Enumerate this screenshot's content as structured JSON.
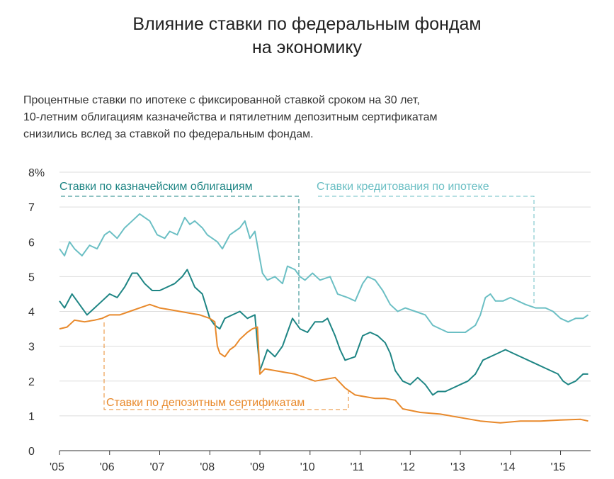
{
  "header": {
    "title_line1": "Влияние ставки по федеральным фондам",
    "title_line2": "на экономику",
    "subtitle_line1": "Процентные ставки по ипотеке с фиксированной ставкой сроком на 30 лет,",
    "subtitle_line2": "10-летним облигациям казначейства и пятилетним депозитным  сертификатам",
    "subtitle_line3": "снизились вслед за ставкой по федеральным фондам."
  },
  "chart_data": {
    "type": "line",
    "ylim": [
      0,
      8
    ],
    "xlim": [
      2005.0,
      2015.6
    ],
    "y_ticks": [
      "0",
      "1",
      "2",
      "3",
      "4",
      "5",
      "6",
      "7",
      "8%"
    ],
    "y_tick_values": [
      0,
      1,
      2,
      3,
      4,
      5,
      6,
      7,
      8
    ],
    "x_ticks": [
      "'05",
      "'06",
      "'07",
      "'08",
      "'09",
      "'10",
      "'11",
      "'12",
      "'13",
      "'14",
      "'15"
    ],
    "x_tick_values": [
      2005,
      2006,
      2007,
      2008,
      2009,
      2010,
      2011,
      2012,
      2013,
      2014,
      2015
    ],
    "grid": true,
    "colors": {
      "mortgage": "#6bbfc4",
      "treasury": "#1e8584",
      "cd": "#e8892b",
      "grid": "#dddddd",
      "axis": "#333333"
    },
    "series": [
      {
        "name": "Ставки кредитования по ипотеке",
        "key": "mortgage",
        "x": [
          2005.0,
          2005.1,
          2005.2,
          2005.3,
          2005.45,
          2005.6,
          2005.75,
          2005.9,
          2006.0,
          2006.15,
          2006.3,
          2006.45,
          2006.6,
          2006.7,
          2006.8,
          2006.95,
          2007.1,
          2007.2,
          2007.35,
          2007.5,
          2007.6,
          2007.7,
          2007.85,
          2007.95,
          2008.05,
          2008.15,
          2008.25,
          2008.4,
          2008.5,
          2008.6,
          2008.7,
          2008.8,
          2008.9,
          2009.0,
          2009.05,
          2009.15,
          2009.3,
          2009.45,
          2009.55,
          2009.7,
          2009.8,
          2009.9,
          2010.05,
          2010.2,
          2010.4,
          2010.55,
          2010.75,
          2010.9,
          2011.05,
          2011.15,
          2011.3,
          2011.45,
          2011.6,
          2011.75,
          2011.9,
          2012.1,
          2012.3,
          2012.45,
          2012.6,
          2012.75,
          2012.9,
          2013.1,
          2013.3,
          2013.4,
          2013.5,
          2013.6,
          2013.7,
          2013.85,
          2014.0,
          2014.15,
          2014.3,
          2014.5,
          2014.7,
          2014.85,
          2015.0,
          2015.15,
          2015.3,
          2015.45,
          2015.55
        ],
        "y": [
          5.8,
          5.6,
          6.0,
          5.8,
          5.6,
          5.9,
          5.8,
          6.2,
          6.3,
          6.1,
          6.4,
          6.6,
          6.8,
          6.7,
          6.6,
          6.2,
          6.1,
          6.3,
          6.2,
          6.7,
          6.5,
          6.6,
          6.4,
          6.2,
          6.1,
          6.0,
          5.8,
          6.2,
          6.3,
          6.4,
          6.6,
          6.1,
          6.3,
          5.5,
          5.1,
          4.9,
          5.0,
          4.8,
          5.3,
          5.2,
          5.0,
          4.9,
          5.1,
          4.9,
          5.0,
          4.5,
          4.4,
          4.3,
          4.8,
          5.0,
          4.9,
          4.6,
          4.2,
          4.0,
          4.1,
          4.0,
          3.9,
          3.6,
          3.5,
          3.4,
          3.4,
          3.4,
          3.6,
          3.9,
          4.4,
          4.5,
          4.3,
          4.3,
          4.4,
          4.3,
          4.2,
          4.1,
          4.1,
          4.0,
          3.8,
          3.7,
          3.8,
          3.8,
          3.9
        ]
      },
      {
        "name": "Ставки по казначейским облигациям",
        "key": "treasury",
        "x": [
          2005.0,
          2005.1,
          2005.25,
          2005.4,
          2005.55,
          2005.7,
          2005.85,
          2006.0,
          2006.15,
          2006.3,
          2006.45,
          2006.55,
          2006.7,
          2006.85,
          2007.0,
          2007.15,
          2007.3,
          2007.45,
          2007.55,
          2007.7,
          2007.85,
          2008.0,
          2008.1,
          2008.2,
          2008.3,
          2008.45,
          2008.6,
          2008.75,
          2008.9,
          2009.0,
          2009.05,
          2009.15,
          2009.3,
          2009.45,
          2009.55,
          2009.65,
          2009.8,
          2009.95,
          2010.1,
          2010.25,
          2010.35,
          2010.5,
          2010.6,
          2010.7,
          2010.9,
          2011.05,
          2011.2,
          2011.35,
          2011.5,
          2011.6,
          2011.7,
          2011.85,
          2012.0,
          2012.15,
          2012.3,
          2012.45,
          2012.55,
          2012.7,
          2012.85,
          2013.0,
          2013.15,
          2013.3,
          2013.45,
          2013.6,
          2013.75,
          2013.9,
          2014.05,
          2014.2,
          2014.35,
          2014.5,
          2014.65,
          2014.8,
          2014.95,
          2015.05,
          2015.15,
          2015.3,
          2015.45,
          2015.55
        ],
        "y": [
          4.3,
          4.1,
          4.5,
          4.2,
          3.9,
          4.1,
          4.3,
          4.5,
          4.4,
          4.7,
          5.1,
          5.1,
          4.8,
          4.6,
          4.6,
          4.7,
          4.8,
          5.0,
          5.2,
          4.7,
          4.5,
          3.8,
          3.6,
          3.5,
          3.8,
          3.9,
          4.0,
          3.8,
          3.9,
          2.3,
          2.5,
          2.9,
          2.7,
          3.0,
          3.4,
          3.8,
          3.5,
          3.4,
          3.7,
          3.7,
          3.8,
          3.3,
          2.9,
          2.6,
          2.7,
          3.3,
          3.4,
          3.3,
          3.1,
          2.8,
          2.3,
          2.0,
          1.9,
          2.1,
          1.9,
          1.6,
          1.7,
          1.7,
          1.8,
          1.9,
          2.0,
          2.2,
          2.6,
          2.7,
          2.8,
          2.9,
          2.8,
          2.7,
          2.6,
          2.5,
          2.4,
          2.3,
          2.2,
          2.0,
          1.9,
          2.0,
          2.2,
          2.2
        ]
      },
      {
        "name": "Ставки по депозитным сертификатам",
        "key": "cd",
        "x": [
          2005.0,
          2005.15,
          2005.3,
          2005.5,
          2005.7,
          2005.85,
          2006.0,
          2006.2,
          2006.4,
          2006.6,
          2006.8,
          2007.0,
          2007.2,
          2007.4,
          2007.6,
          2007.8,
          2008.0,
          2008.1,
          2008.15,
          2008.2,
          2008.3,
          2008.4,
          2008.5,
          2008.6,
          2008.75,
          2008.85,
          2008.95,
          2009.0,
          2009.1,
          2009.3,
          2009.5,
          2009.7,
          2009.9,
          2010.1,
          2010.3,
          2010.5,
          2010.7,
          2010.9,
          2011.1,
          2011.3,
          2011.5,
          2011.7,
          2011.85,
          2012.2,
          2012.6,
          2013.0,
          2013.4,
          2013.8,
          2014.2,
          2014.6,
          2015.0,
          2015.4,
          2015.55
        ],
        "y": [
          3.5,
          3.55,
          3.75,
          3.7,
          3.75,
          3.8,
          3.9,
          3.9,
          4.0,
          4.1,
          4.2,
          4.1,
          4.05,
          4.0,
          3.95,
          3.9,
          3.8,
          3.7,
          3.0,
          2.8,
          2.7,
          2.9,
          3.0,
          3.2,
          3.4,
          3.5,
          3.55,
          2.2,
          2.35,
          2.3,
          2.25,
          2.2,
          2.1,
          2.0,
          2.05,
          2.1,
          1.8,
          1.6,
          1.55,
          1.5,
          1.5,
          1.45,
          1.2,
          1.1,
          1.05,
          0.95,
          0.85,
          0.8,
          0.85,
          0.85,
          0.88,
          0.9,
          0.85
        ]
      }
    ],
    "annotations": {
      "treasury_label": "Ставки по казначейским облигациям",
      "mortgage_label": "Ставки кредитования по ипотеке",
      "cd_label": "Ставки по депозитным сертификатам"
    }
  }
}
